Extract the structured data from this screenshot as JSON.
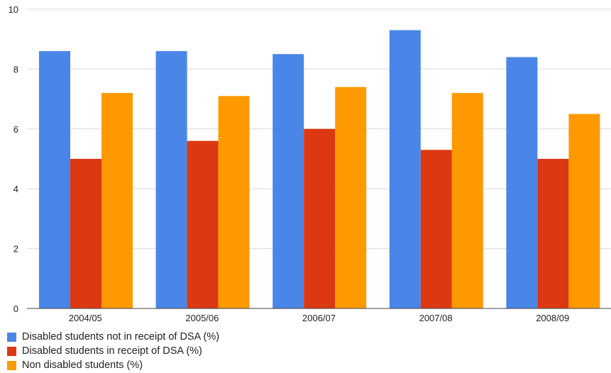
{
  "chart_data": {
    "type": "bar",
    "categories": [
      "2004/05",
      "2005/06",
      "2006/07",
      "2007/08",
      "2008/09"
    ],
    "series": [
      {
        "name": "Disabled students not in receipt of DSA (%)",
        "color": "#4a86e8",
        "values": [
          8.6,
          8.6,
          8.5,
          9.3,
          8.4
        ]
      },
      {
        "name": "Disabled students in receipt of DSA (%)",
        "color": "#dc3912",
        "values": [
          5.0,
          5.6,
          6.0,
          5.3,
          5.0
        ]
      },
      {
        "name": "Non disabled students (%)",
        "color": "#ff9900",
        "values": [
          7.2,
          7.1,
          7.4,
          7.2,
          6.5
        ]
      }
    ],
    "y_ticks": [
      "0",
      "2",
      "4",
      "6",
      "8",
      "10"
    ],
    "ylim": [
      0,
      10
    ],
    "grid": true,
    "legend_position": "bottom-left"
  }
}
